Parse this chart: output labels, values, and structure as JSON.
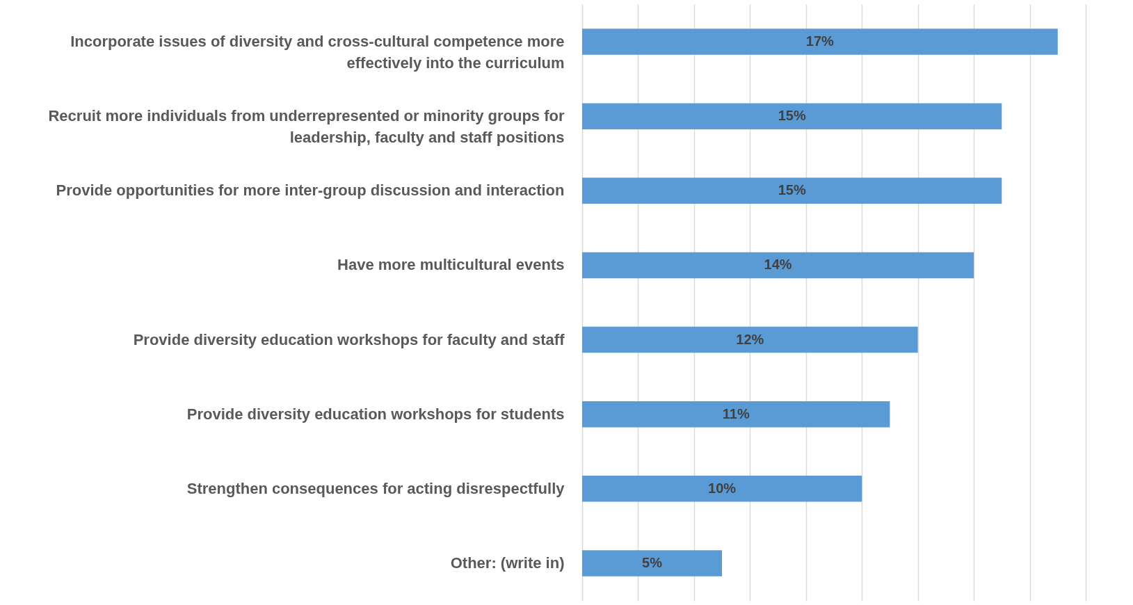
{
  "chart_data": {
    "type": "bar",
    "orientation": "horizontal",
    "categories": [
      "Incorporate issues of diversity and cross-cultural competence more effectively into the curriculum",
      "Recruit more individuals from underrepresented or minority groups for leadership, faculty and staff positions",
      "Provide opportunities for more inter-group discussion and interaction",
      "Have more multicultural events",
      "Provide diversity education workshops for faculty and staff",
      "Provide diversity education workshops for students",
      "Strengthen consequences for acting disrespectfully",
      "Other: (write in)"
    ],
    "values": [
      17,
      15,
      15,
      14,
      12,
      11,
      10,
      5
    ],
    "value_labels": [
      "17%",
      "15%",
      "15%",
      "14%",
      "12%",
      "11%",
      "10%",
      "5%"
    ],
    "color": "#5b9bd5",
    "xlim": [
      0,
      18
    ],
    "xticks": [
      {
        "value": 0,
        "label": null
      },
      {
        "value": 2,
        "label": null
      },
      {
        "value": 4,
        "label": null
      },
      {
        "value": 6,
        "label": null
      },
      {
        "value": 8,
        "label": null
      },
      {
        "value": 10,
        "label": null
      },
      {
        "value": 12,
        "label": null
      },
      {
        "value": 14,
        "label": null
      },
      {
        "value": 16,
        "label": null
      },
      {
        "value": 18,
        "label": null
      }
    ],
    "tick_labels": "y",
    "grid": "x"
  }
}
